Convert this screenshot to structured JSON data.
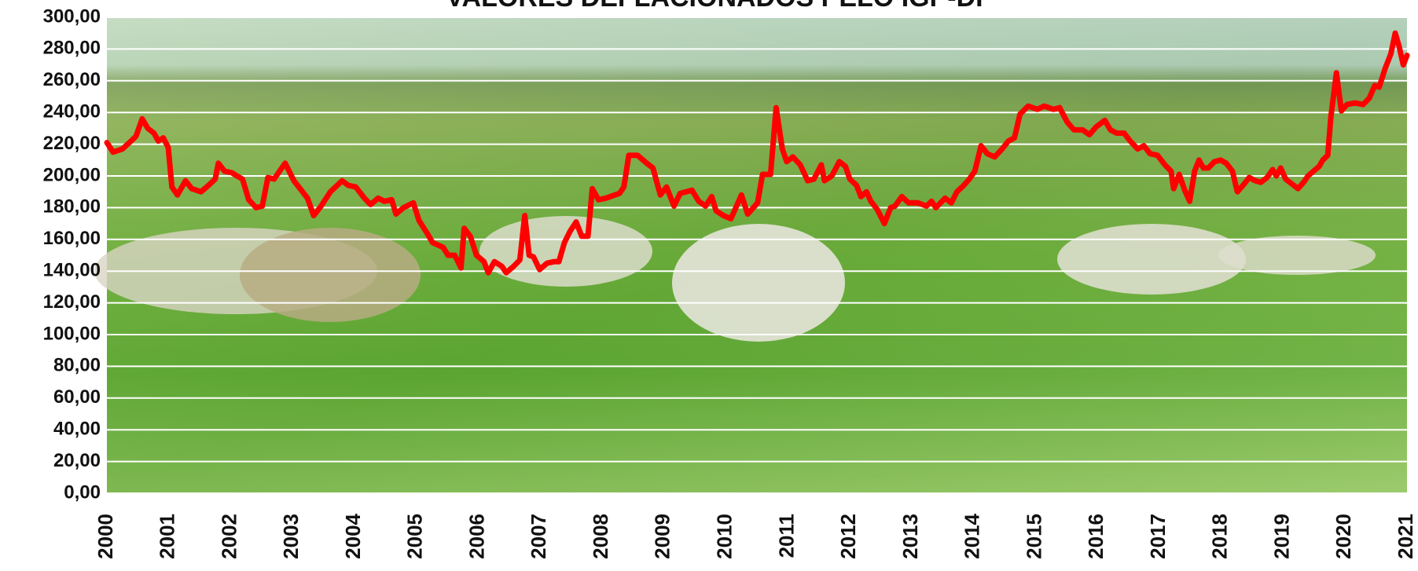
{
  "chart_data": {
    "type": "line",
    "title": "VALORES DEFLACIONADOS PELO IGP-DI",
    "xlim": [
      2000,
      2021
    ],
    "xticks": [
      2000,
      2001,
      2002,
      2003,
      2004,
      2005,
      2006,
      2007,
      2008,
      2009,
      2010,
      2011,
      2012,
      2013,
      2014,
      2015,
      2016,
      2017,
      2018,
      2019,
      2020,
      2021
    ],
    "ylim": [
      0,
      300
    ],
    "yticks": [
      {
        "value": 0,
        "label": "0,00"
      },
      {
        "value": 20,
        "label": "20,00"
      },
      {
        "value": 40,
        "label": "40,00"
      },
      {
        "value": 60,
        "label": "60,00"
      },
      {
        "value": 80,
        "label": "80,00"
      },
      {
        "value": 100,
        "label": "100,00"
      },
      {
        "value": 120,
        "label": "120,00"
      },
      {
        "value": 140,
        "label": "140,00"
      },
      {
        "value": 160,
        "label": "160,00"
      },
      {
        "value": 180,
        "label": "180,00"
      },
      {
        "value": 200,
        "label": "200,00"
      },
      {
        "value": 220,
        "label": "220,00"
      },
      {
        "value": 240,
        "label": "240,00"
      },
      {
        "value": 260,
        "label": "260,00"
      },
      {
        "value": 280,
        "label": "280,00"
      },
      {
        "value": 300,
        "label": "300,00"
      }
    ],
    "grid": true,
    "grid_color": "#ffffff",
    "x": [
      2000.0,
      2000.1,
      2000.25,
      2000.39,
      2000.47,
      2000.57,
      2000.66,
      2000.76,
      2000.83,
      2000.91,
      2000.99,
      2001.05,
      2001.14,
      2001.27,
      2001.37,
      2001.52,
      2001.64,
      2001.75,
      2001.8,
      2001.9,
      2002.02,
      2002.1,
      2002.19,
      2002.29,
      2002.41,
      2002.51,
      2002.6,
      2002.7,
      2002.88,
      2003.02,
      2003.24,
      2003.34,
      2003.46,
      2003.61,
      2003.8,
      2003.9,
      2004.02,
      2004.16,
      2004.26,
      2004.38,
      2004.48,
      2004.6,
      2004.67,
      2004.79,
      2004.95,
      2005.04,
      2005.17,
      2005.26,
      2005.43,
      2005.51,
      2005.62,
      2005.72,
      2005.77,
      2005.87,
      2005.97,
      2006.09,
      2006.16,
      2006.26,
      2006.38,
      2006.45,
      2006.57,
      2006.67,
      2006.75,
      2006.82,
      2006.89,
      2006.99,
      2007.11,
      2007.23,
      2007.3,
      2007.39,
      2007.48,
      2007.58,
      2007.67,
      2007.77,
      2007.84,
      2007.94,
      2008.06,
      2008.28,
      2008.35,
      2008.43,
      2008.57,
      2008.72,
      2008.82,
      2008.94,
      2009.04,
      2009.16,
      2009.26,
      2009.45,
      2009.56,
      2009.67,
      2009.77,
      2009.84,
      2009.96,
      2010.08,
      2010.25,
      2010.35,
      2010.51,
      2010.59,
      2010.72,
      2010.81,
      2010.91,
      2010.98,
      2011.08,
      2011.2,
      2011.32,
      2011.42,
      2011.54,
      2011.59,
      2011.71,
      2011.83,
      2011.93,
      2012.0,
      2012.11,
      2012.18,
      2012.27,
      2012.34,
      2012.44,
      2012.56,
      2012.66,
      2012.73,
      2012.84,
      2012.95,
      2013.1,
      2013.24,
      2013.32,
      2013.39,
      2013.54,
      2013.64,
      2013.73,
      2013.84,
      2013.93,
      2014.02,
      2014.12,
      2014.22,
      2014.34,
      2014.46,
      2014.56,
      2014.66,
      2014.75,
      2014.88,
      2015.03,
      2015.14,
      2015.29,
      2015.39,
      2015.51,
      2015.62,
      2015.76,
      2015.87,
      2015.98,
      2016.12,
      2016.21,
      2016.31,
      2016.43,
      2016.53,
      2016.65,
      2016.75,
      2016.85,
      2016.97,
      2017.09,
      2017.19,
      2017.23,
      2017.32,
      2017.41,
      2017.49,
      2017.57,
      2017.64,
      2017.71,
      2017.79,
      2017.89,
      2017.99,
      2018.08,
      2018.18,
      2018.26,
      2018.37,
      2018.45,
      2018.55,
      2018.64,
      2018.74,
      2018.83,
      2018.89,
      2018.96,
      2019.04,
      2019.14,
      2019.24,
      2019.33,
      2019.4,
      2019.49,
      2019.58,
      2019.64,
      2019.72,
      2019.77,
      2019.86,
      2019.94,
      2020.03,
      2020.16,
      2020.29,
      2020.39,
      2020.48,
      2020.55,
      2020.65,
      2020.74,
      2020.81,
      2020.87,
      2020.94,
      2021.0
    ],
    "series": [
      {
        "color": "#ff0000",
        "values": [
          221,
          215,
          217,
          222,
          225,
          236,
          230,
          227,
          222,
          224,
          218,
          193,
          188,
          197,
          192,
          190,
          194,
          198,
          208,
          203,
          202,
          200,
          198,
          185,
          180,
          181,
          199,
          198,
          208,
          197,
          186,
          175,
          181,
          190,
          197,
          194,
          193,
          186,
          182,
          186,
          184,
          185,
          176,
          180,
          183,
          172,
          164,
          158,
          155,
          150,
          150,
          142,
          167,
          162,
          150,
          146,
          139,
          146,
          143,
          139,
          143,
          147,
          175,
          150,
          149,
          141,
          145,
          146,
          146,
          158,
          165,
          171,
          162,
          162,
          192,
          185,
          186,
          189,
          193,
          213,
          213,
          208,
          205,
          188,
          193,
          181,
          189,
          191,
          184,
          181,
          187,
          178,
          175,
          173,
          188,
          176,
          183,
          201,
          201,
          243,
          217,
          209,
          212,
          207,
          197,
          198,
          207,
          197,
          200,
          209,
          206,
          198,
          194,
          187,
          190,
          184,
          179,
          170,
          180,
          181,
          187,
          183,
          183,
          181,
          184,
          180,
          186,
          183,
          190,
          194,
          198,
          203,
          219,
          214,
          212,
          217,
          222,
          224,
          239,
          244,
          242,
          244,
          242,
          243,
          234,
          229,
          229,
          226,
          231,
          235,
          229,
          227,
          227,
          222,
          217,
          219,
          214,
          213,
          207,
          203,
          192,
          201,
          191,
          184,
          203,
          210,
          205,
          205,
          209,
          210,
          208,
          203,
          190,
          195,
          199,
          197,
          196,
          199,
          204,
          200,
          205,
          198,
          195,
          192,
          196,
          200,
          203,
          206,
          210,
          213,
          237,
          265,
          241,
          245,
          246,
          245,
          249,
          257,
          256,
          268,
          277,
          290,
          282,
          270,
          276
        ]
      }
    ]
  }
}
